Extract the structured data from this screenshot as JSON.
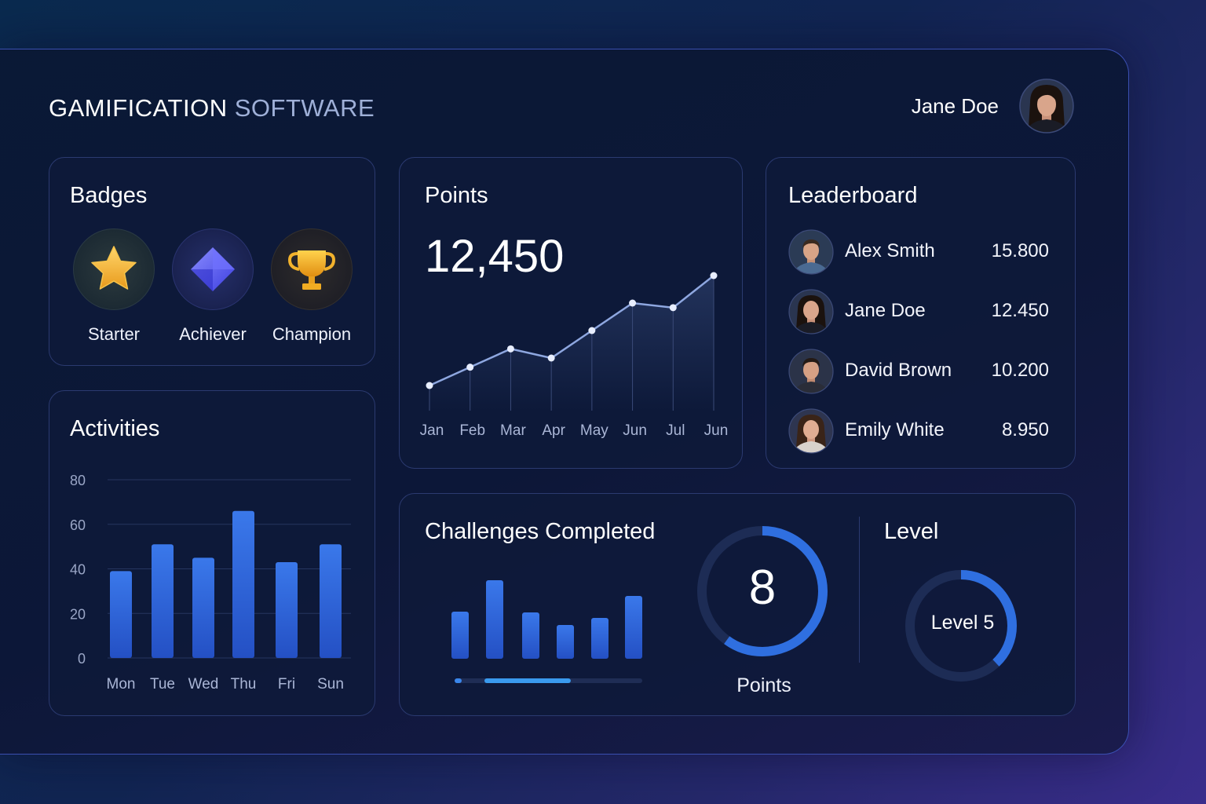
{
  "header": {
    "title_main": "GAMIFICATION",
    "title_sub": "SOFTWARE",
    "user_name": "Jane Doe",
    "avatar_icon": "user-avatar-icon"
  },
  "badges": {
    "title": "Badges",
    "items": [
      {
        "label": "Starter",
        "icon": "star-icon",
        "color": "#f5b731"
      },
      {
        "label": "Achiever",
        "icon": "diamond-icon",
        "color": "#5b5cf0"
      },
      {
        "label": "Champion",
        "icon": "trophy-icon",
        "color": "#f0a81c"
      }
    ]
  },
  "points": {
    "title": "Points",
    "total": "12,450",
    "chart_data": {
      "type": "line",
      "categories": [
        "Jan",
        "Feb",
        "Mar",
        "Apr",
        "May",
        "Jun",
        "Jul",
        "Jun"
      ],
      "values": [
        3,
        5,
        7,
        6,
        9,
        12,
        11.5,
        15
      ],
      "title": "",
      "xlabel": "",
      "ylabel": "",
      "grid": false
    }
  },
  "leaderboard": {
    "title": "Leaderboard",
    "rows": [
      {
        "name": "Alex Smith",
        "score": "15.800"
      },
      {
        "name": "Jane Doe",
        "score": "12.450"
      },
      {
        "name": "David Brown",
        "score": "10.200"
      },
      {
        "name": "Emily White",
        "score": "8.950"
      }
    ]
  },
  "activities": {
    "title": "Activities",
    "chart_data": {
      "type": "bar",
      "categories": [
        "Mon",
        "Tue",
        "Wed",
        "Thu",
        "Fri",
        "Sun"
      ],
      "values": [
        39,
        51,
        45,
        66,
        43,
        51
      ],
      "title": "",
      "xlabel": "",
      "ylabel": "",
      "ylim": [
        0,
        80
      ],
      "yticks": [
        0,
        20,
        40,
        60,
        80
      ],
      "grid": true,
      "color": "#2f66d8"
    }
  },
  "challenges": {
    "title": "Challenges Completed",
    "count": "8",
    "count_label": "Points",
    "ring_fraction": 0.6,
    "progress_fraction": 0.46,
    "chart_data": {
      "type": "bar",
      "categories": [
        "",
        "",
        "",
        "",
        "",
        ""
      ],
      "values": [
        60,
        100,
        59,
        43,
        52,
        80
      ],
      "title": "",
      "xlabel": "",
      "ylabel": "",
      "color": "#2f66d8"
    }
  },
  "level": {
    "title": "Level",
    "label": "Level 5",
    "ring_fraction": 0.38
  },
  "colors": {
    "accent": "#2f6fe0",
    "ring_track": "#1d2c55"
  }
}
